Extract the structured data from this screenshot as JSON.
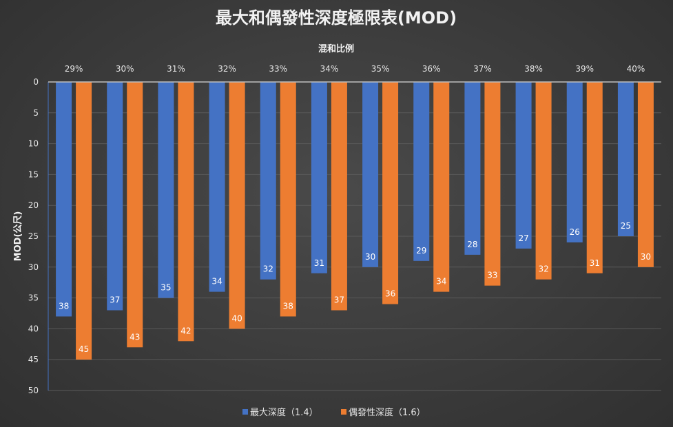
{
  "chart_data": {
    "type": "bar",
    "title": "最大和偶發性深度極限表(MOD)",
    "xlabel": "混和比例",
    "ylabel": "MOD(公尺)",
    "categories": [
      "29%",
      "30%",
      "31%",
      "32%",
      "33%",
      "34%",
      "35%",
      "36%",
      "37%",
      "38%",
      "39%",
      "40%"
    ],
    "series": [
      {
        "name": "最大深度（1.4）",
        "color": "#4472c4",
        "values": [
          38,
          37,
          35,
          34,
          32,
          31,
          30,
          29,
          28,
          27,
          26,
          25
        ]
      },
      {
        "name": "偶發性深度（1.6）",
        "color": "#ed7d31",
        "values": [
          45,
          43,
          42,
          40,
          38,
          37,
          36,
          34,
          33,
          32,
          31,
          30
        ]
      }
    ],
    "ylim": [
      0,
      50
    ],
    "y_ticks": [
      0,
      5,
      10,
      15,
      20,
      25,
      30,
      35,
      40,
      45,
      50
    ],
    "y_reversed": true,
    "x_axis_position": "top",
    "grid": true,
    "data_labels": true,
    "legend_position": "bottom"
  }
}
